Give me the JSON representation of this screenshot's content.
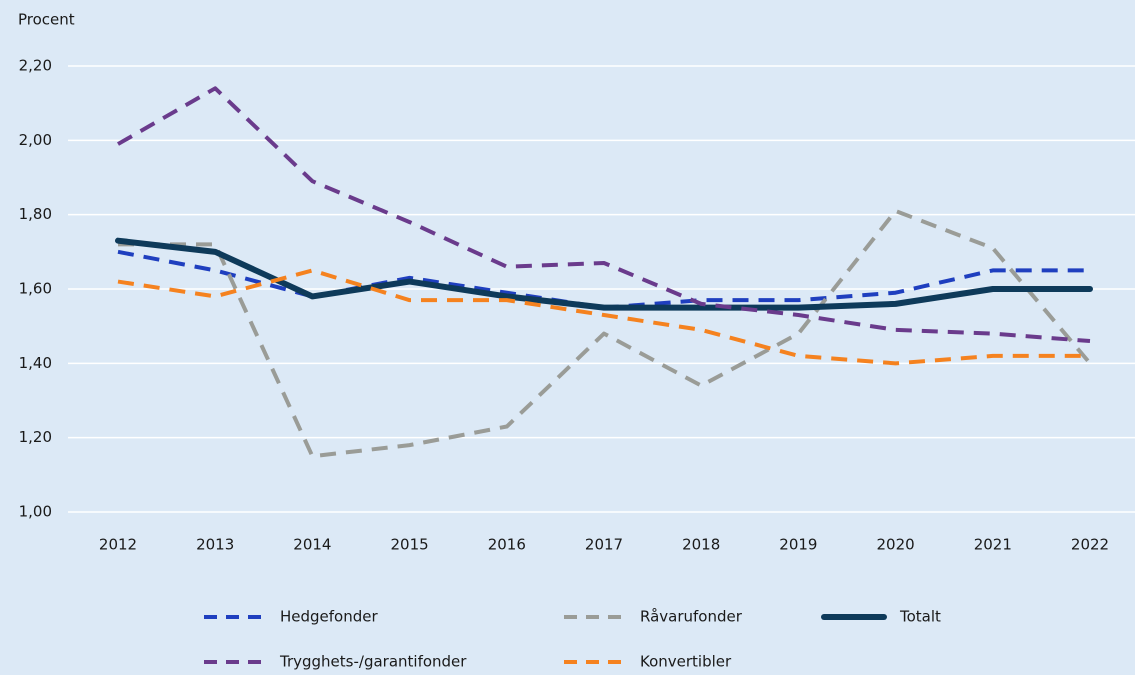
{
  "chart_data": {
    "type": "line",
    "y_label": "Procent",
    "categories": [
      "2012",
      "2013",
      "2014",
      "2015",
      "2016",
      "2017",
      "2018",
      "2019",
      "2020",
      "2021",
      "2022"
    ],
    "series": [
      {
        "name": "Hedgefonder",
        "color": "#1f3fbf",
        "dashed": true,
        "values": [
          1.7,
          1.65,
          1.58,
          1.63,
          1.59,
          1.55,
          1.57,
          1.57,
          1.59,
          1.65,
          1.65
        ]
      },
      {
        "name": "Råvarufonder",
        "color": "#9a9c97",
        "dashed": true,
        "values": [
          1.72,
          1.72,
          1.15,
          1.18,
          1.23,
          1.48,
          1.34,
          1.48,
          1.81,
          1.71,
          1.4
        ]
      },
      {
        "name": "Totalt",
        "color": "#0e3a5a",
        "dashed": false,
        "values": [
          1.73,
          1.7,
          1.58,
          1.62,
          1.58,
          1.55,
          1.55,
          1.55,
          1.56,
          1.6,
          1.6
        ]
      },
      {
        "name": "Trygghets-/garantifonder",
        "color": "#6a3b8c",
        "dashed": true,
        "values": [
          1.99,
          2.14,
          1.89,
          1.78,
          1.66,
          1.67,
          1.56,
          1.53,
          1.49,
          1.48,
          1.46
        ]
      },
      {
        "name": "Konvertibler",
        "color": "#f5821f",
        "dashed": true,
        "values": [
          1.62,
          1.58,
          1.65,
          1.57,
          1.57,
          1.53,
          1.49,
          1.42,
          1.4,
          1.42,
          1.42
        ]
      }
    ],
    "ylim": [
      1.0,
      2.2
    ],
    "yticks": [
      {
        "value": 1.0,
        "label": "1,00"
      },
      {
        "value": 1.2,
        "label": "1,20"
      },
      {
        "value": 1.4,
        "label": "1,40"
      },
      {
        "value": 1.6,
        "label": "1,60"
      },
      {
        "value": 1.8,
        "label": "1,80"
      },
      {
        "value": 2.0,
        "label": "2,00"
      },
      {
        "value": 2.2,
        "label": "2,20"
      }
    ],
    "grid": true
  }
}
